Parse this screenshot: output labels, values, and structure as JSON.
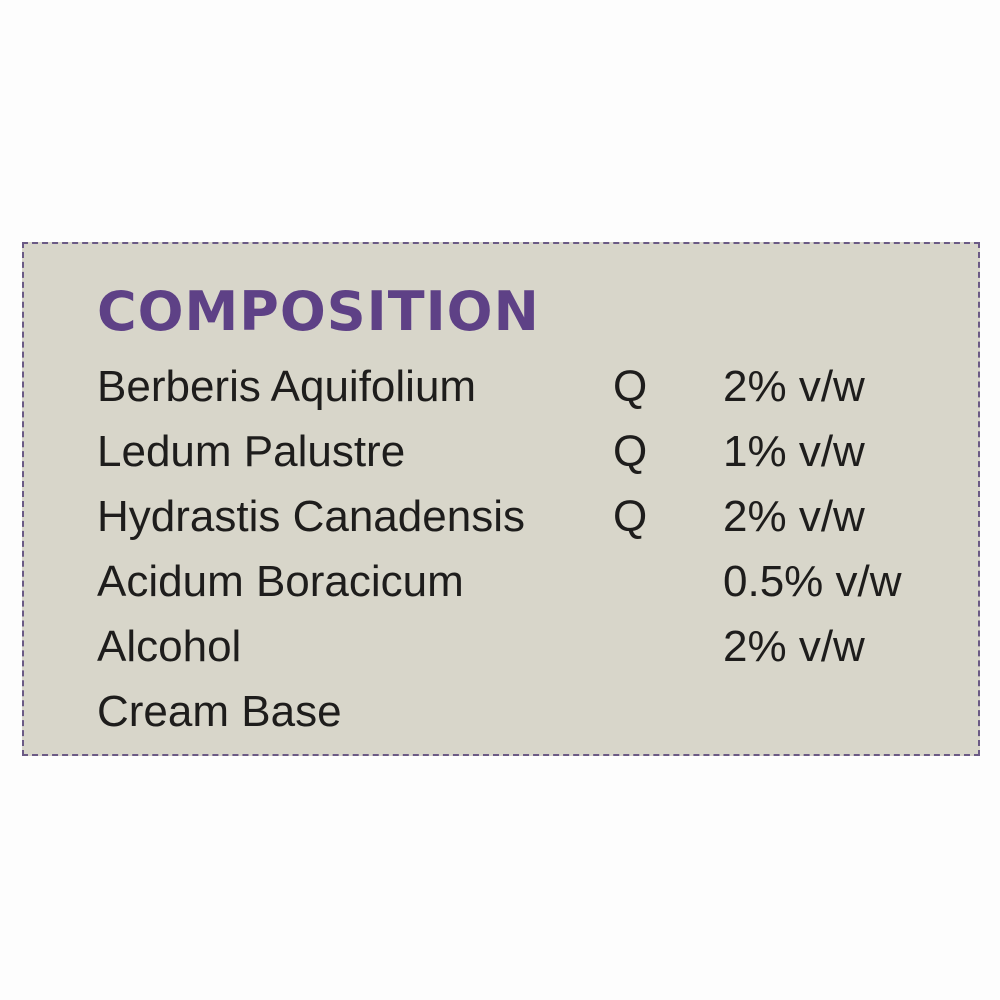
{
  "title": "COMPOSITION",
  "colors": {
    "title": "#5e4186",
    "label_background": "#d8d6ca",
    "text": "#1e1d1c"
  },
  "rows": [
    {
      "name": "Berberis Aquifolium",
      "potency": "Q",
      "amount": "2% v/w"
    },
    {
      "name": "Ledum Palustre",
      "potency": "Q",
      "amount": "1% v/w"
    },
    {
      "name": "Hydrastis Canadensis",
      "potency": "Q",
      "amount": "2% v/w"
    },
    {
      "name": "Acidum Boracicum",
      "potency": "",
      "amount": "0.5% v/w"
    },
    {
      "name": "Alcohol",
      "potency": "",
      "amount": "2% v/w"
    },
    {
      "name": "Cream Base",
      "potency": "",
      "amount": ""
    }
  ]
}
